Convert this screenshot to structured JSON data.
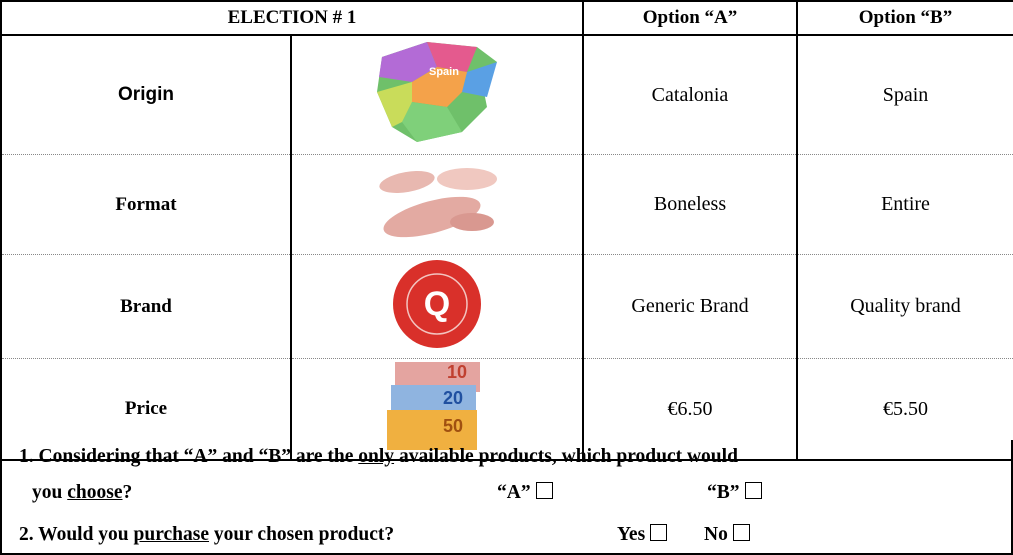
{
  "table": {
    "header": [
      "ELECTION # 1",
      "Option “A”",
      "Option “B”"
    ],
    "rows": [
      {
        "attribute": "Origin",
        "image_label": "Spain",
        "option_a": "Catalonia",
        "option_b": "Spain"
      },
      {
        "attribute": "Format",
        "option_a": "Boneless",
        "option_b": "Entire"
      },
      {
        "attribute": "Brand",
        "image_label": "Q",
        "option_a": "Generic Brand",
        "option_b": "Quality brand"
      },
      {
        "attribute": "Price",
        "image_labels": [
          "10",
          "20",
          "50"
        ],
        "option_a": "€6.50",
        "option_b": "€5.50"
      }
    ]
  },
  "questions": [
    {
      "line1": [
        "1. Considering that “A” and “B” are the ",
        "only",
        " available products, which product would"
      ],
      "line2": [
        "you ",
        "choose",
        "?"
      ],
      "choices": [
        "“A”",
        "“B”"
      ]
    },
    {
      "line1": [
        "2. Would you ",
        "purchase",
        " your chosen product?"
      ],
      "choices": [
        "Yes",
        "No"
      ]
    }
  ]
}
